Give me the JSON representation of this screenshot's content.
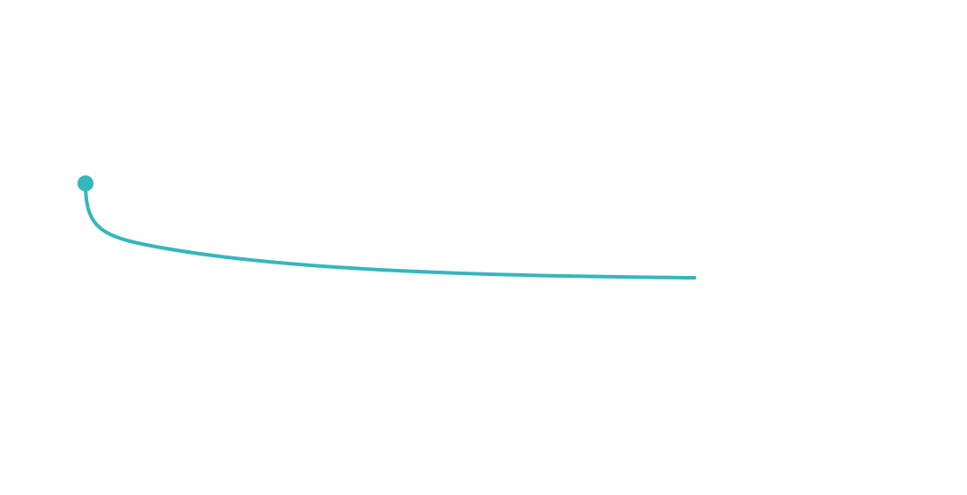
{
  "connector": {
    "color": "#35b6bd"
  }
}
